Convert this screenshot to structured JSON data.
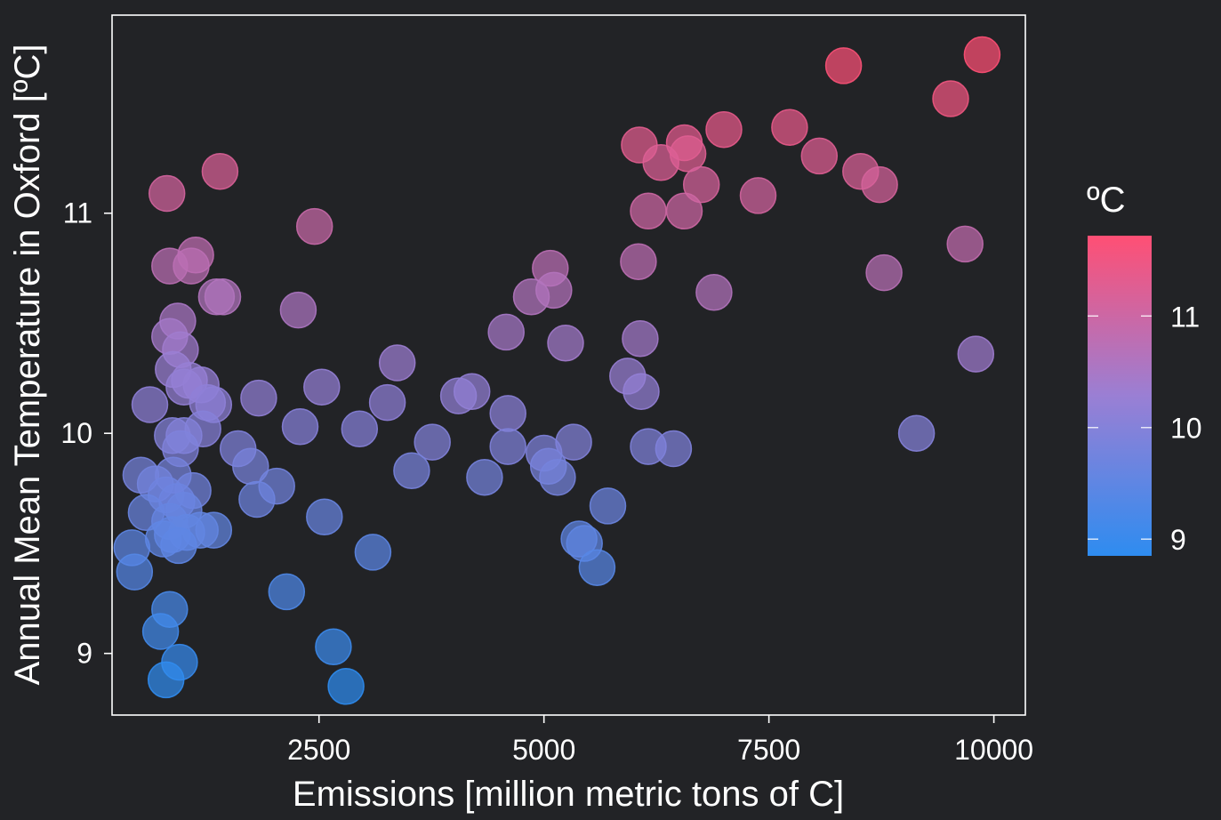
{
  "chart_data": {
    "type": "scatter",
    "title": "",
    "xlabel": "Emissions [million metric tons of C]",
    "ylabel": "Annual Mean Temperature in Oxford [ºC]",
    "xlim": [
      200,
      10350
    ],
    "ylim": [
      8.72,
      11.9
    ],
    "xticks": [
      2500,
      5000,
      7500,
      10000
    ],
    "yticks": [
      9,
      10,
      11
    ],
    "grid": false,
    "legend": {
      "title": "ºC",
      "placement": "right",
      "type": "colorbar",
      "ticks": [
        9,
        10,
        11
      ],
      "range": [
        8.85,
        11.72
      ],
      "color_low": "#2e8cf0",
      "color_mid": "#9a7fd4",
      "color_high": "#ff4f74"
    },
    "points": [
      {
        "x": 9870,
        "y": 11.72
      },
      {
        "x": 8330,
        "y": 11.67
      },
      {
        "x": 9520,
        "y": 11.52
      },
      {
        "x": 7730,
        "y": 11.39
      },
      {
        "x": 7000,
        "y": 11.38
      },
      {
        "x": 6060,
        "y": 11.31
      },
      {
        "x": 6560,
        "y": 11.32
      },
      {
        "x": 6600,
        "y": 11.27
      },
      {
        "x": 6300,
        "y": 11.23
      },
      {
        "x": 8060,
        "y": 11.26
      },
      {
        "x": 8520,
        "y": 11.19
      },
      {
        "x": 8730,
        "y": 11.13
      },
      {
        "x": 6750,
        "y": 11.13
      },
      {
        "x": 7380,
        "y": 11.08
      },
      {
        "x": 6160,
        "y": 11.01
      },
      {
        "x": 6560,
        "y": 11.01
      },
      {
        "x": 1400,
        "y": 11.19
      },
      {
        "x": 810,
        "y": 11.09
      },
      {
        "x": 2450,
        "y": 10.94
      },
      {
        "x": 9680,
        "y": 10.86
      },
      {
        "x": 6050,
        "y": 10.78
      },
      {
        "x": 8780,
        "y": 10.73
      },
      {
        "x": 1130,
        "y": 10.81
      },
      {
        "x": 1080,
        "y": 10.76
      },
      {
        "x": 840,
        "y": 10.76
      },
      {
        "x": 5070,
        "y": 10.75
      },
      {
        "x": 5110,
        "y": 10.65
      },
      {
        "x": 4860,
        "y": 10.62
      },
      {
        "x": 6890,
        "y": 10.64
      },
      {
        "x": 1360,
        "y": 10.62
      },
      {
        "x": 1430,
        "y": 10.62
      },
      {
        "x": 2270,
        "y": 10.56
      },
      {
        "x": 930,
        "y": 10.51
      },
      {
        "x": 4580,
        "y": 10.46
      },
      {
        "x": 840,
        "y": 10.44
      },
      {
        "x": 6070,
        "y": 10.43
      },
      {
        "x": 5240,
        "y": 10.41
      },
      {
        "x": 960,
        "y": 10.38
      },
      {
        "x": 9800,
        "y": 10.36
      },
      {
        "x": 3370,
        "y": 10.32
      },
      {
        "x": 880,
        "y": 10.29
      },
      {
        "x": 5930,
        "y": 10.26
      },
      {
        "x": 1060,
        "y": 10.24
      },
      {
        "x": 1190,
        "y": 10.22
      },
      {
        "x": 2530,
        "y": 10.21
      },
      {
        "x": 1000,
        "y": 10.21
      },
      {
        "x": 6080,
        "y": 10.19
      },
      {
        "x": 4200,
        "y": 10.19
      },
      {
        "x": 4050,
        "y": 10.17
      },
      {
        "x": 1830,
        "y": 10.16
      },
      {
        "x": 1260,
        "y": 10.14
      },
      {
        "x": 3260,
        "y": 10.14
      },
      {
        "x": 1330,
        "y": 10.13
      },
      {
        "x": 620,
        "y": 10.13
      },
      {
        "x": 4600,
        "y": 10.09
      },
      {
        "x": 2290,
        "y": 10.03
      },
      {
        "x": 1210,
        "y": 10.02
      },
      {
        "x": 9140,
        "y": 10.0
      },
      {
        "x": 2950,
        "y": 10.02
      },
      {
        "x": 870,
        "y": 9.99
      },
      {
        "x": 1000,
        "y": 9.99
      },
      {
        "x": 3760,
        "y": 9.96
      },
      {
        "x": 4600,
        "y": 9.94
      },
      {
        "x": 5330,
        "y": 9.96
      },
      {
        "x": 6160,
        "y": 9.94
      },
      {
        "x": 6440,
        "y": 9.93
      },
      {
        "x": 1600,
        "y": 9.93
      },
      {
        "x": 960,
        "y": 9.93
      },
      {
        "x": 5000,
        "y": 9.91
      },
      {
        "x": 5050,
        "y": 9.85
      },
      {
        "x": 1740,
        "y": 9.85
      },
      {
        "x": 3530,
        "y": 9.83
      },
      {
        "x": 520,
        "y": 9.81
      },
      {
        "x": 880,
        "y": 9.81
      },
      {
        "x": 5150,
        "y": 9.8
      },
      {
        "x": 4340,
        "y": 9.8
      },
      {
        "x": 680,
        "y": 9.77
      },
      {
        "x": 2030,
        "y": 9.76
      },
      {
        "x": 1100,
        "y": 9.74
      },
      {
        "x": 800,
        "y": 9.72
      },
      {
        "x": 1810,
        "y": 9.7
      },
      {
        "x": 920,
        "y": 9.69
      },
      {
        "x": 5710,
        "y": 9.67
      },
      {
        "x": 580,
        "y": 9.64
      },
      {
        "x": 1000,
        "y": 9.65
      },
      {
        "x": 2560,
        "y": 9.62
      },
      {
        "x": 840,
        "y": 9.6
      },
      {
        "x": 1180,
        "y": 9.56
      },
      {
        "x": 1330,
        "y": 9.56
      },
      {
        "x": 870,
        "y": 9.54
      },
      {
        "x": 1030,
        "y": 9.55
      },
      {
        "x": 770,
        "y": 9.52
      },
      {
        "x": 5390,
        "y": 9.52
      },
      {
        "x": 5450,
        "y": 9.5
      },
      {
        "x": 940,
        "y": 9.49
      },
      {
        "x": 420,
        "y": 9.48
      },
      {
        "x": 3100,
        "y": 9.46
      },
      {
        "x": 5590,
        "y": 9.39
      },
      {
        "x": 450,
        "y": 9.37
      },
      {
        "x": 2140,
        "y": 9.28
      },
      {
        "x": 840,
        "y": 9.2
      },
      {
        "x": 740,
        "y": 9.1
      },
      {
        "x": 2660,
        "y": 9.03
      },
      {
        "x": 950,
        "y": 8.96
      },
      {
        "x": 800,
        "y": 8.88
      },
      {
        "x": 2800,
        "y": 8.85
      }
    ]
  }
}
